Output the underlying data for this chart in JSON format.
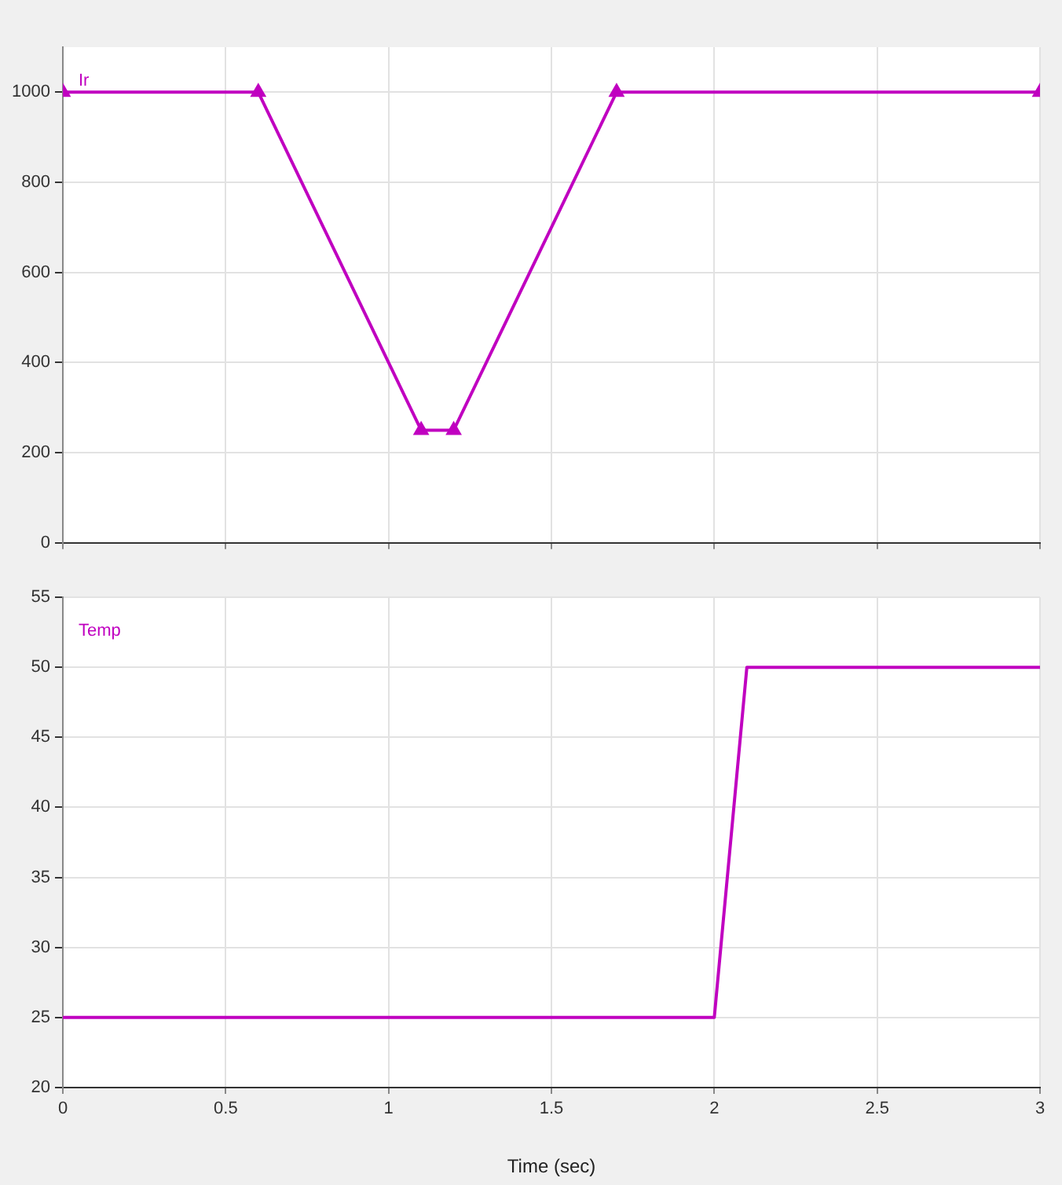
{
  "chart_data": [
    {
      "type": "line",
      "x": [
        0,
        0.6,
        1.1,
        1.2,
        1.7,
        3
      ],
      "xlim": [
        0,
        3
      ],
      "xticks": [
        0,
        0.5,
        1,
        1.5,
        2,
        2.5,
        3
      ],
      "ylim": [
        0,
        1100
      ],
      "yticks": [
        0,
        200,
        400,
        600,
        800,
        1000
      ],
      "tick_labels": "y",
      "grid": true,
      "legend": false,
      "marker": "triangle",
      "line_style": "solid",
      "series": [
        {
          "name": "Ir",
          "color": "#c000c0",
          "values": [
            1000,
            1000,
            250,
            250,
            1000,
            1000
          ]
        }
      ]
    },
    {
      "type": "line",
      "x": [
        0,
        2,
        2.1,
        3
      ],
      "xlim": [
        0,
        3
      ],
      "xticks": [
        0,
        0.5,
        1,
        1.5,
        2,
        2.5,
        3
      ],
      "ylim": [
        20,
        55
      ],
      "yticks": [
        20,
        25,
        30,
        35,
        40,
        45,
        50,
        55
      ],
      "xlabel": "Time (sec)",
      "grid": true,
      "legend": false,
      "marker": "none",
      "line_style": "solid",
      "series": [
        {
          "name": "Temp",
          "color": "#c000c0",
          "values": [
            25,
            25,
            50,
            50
          ]
        }
      ]
    }
  ]
}
